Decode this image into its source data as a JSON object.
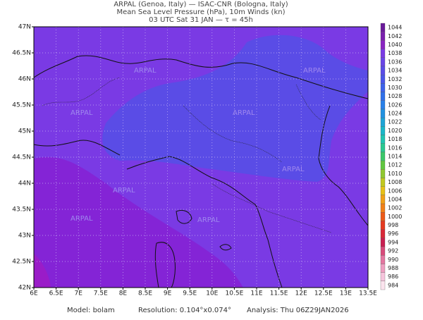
{
  "header": {
    "line1": "ARPAL (Genoa, Italy)  —  ISAC-CNR (Bologna, Italy)",
    "line2": "Mean Sea Level Pressure (hPa), 10m Winds (kn)",
    "line3": "03 UTC Sat 31 JAN  —  τ = 45h"
  },
  "map": {
    "lon_labels": [
      "6E",
      "6.5E",
      "7E",
      "7.5E",
      "8E",
      "8.5E",
      "9E",
      "9.5E",
      "10E",
      "10.5E",
      "11E",
      "11.5E",
      "12E",
      "12.5E",
      "13E",
      "13.5E"
    ],
    "lat_labels": [
      "47N",
      "46.5N",
      "46N",
      "45.5N",
      "45N",
      "44.5N",
      "44N",
      "43.5N",
      "43N",
      "42.5N",
      "42N"
    ],
    "watermark": "ARPAL"
  },
  "colorbar": {
    "levels": [
      1044,
      1042,
      1040,
      1038,
      1036,
      1034,
      1032,
      1030,
      1028,
      1026,
      1024,
      1022,
      1020,
      1018,
      1016,
      1014,
      1012,
      1010,
      1008,
      1006,
      1004,
      1002,
      1000,
      998,
      996,
      994,
      992,
      990,
      988,
      986,
      984
    ]
  },
  "footer": {
    "model": "Model: bolam",
    "resolution": "Resolution: 0.104°x0.074°",
    "analysis": "Analysis: Thu 06Z29JAN2026"
  }
}
